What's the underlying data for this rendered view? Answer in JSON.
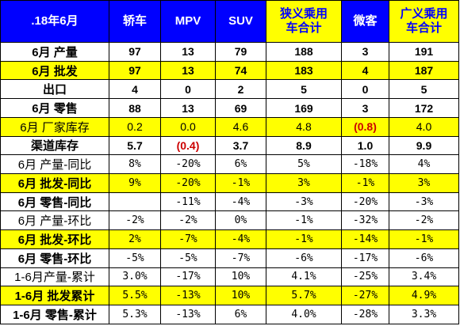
{
  "chart_data": {
    "type": "table",
    "columns": [
      ".18年6月",
      "轿车",
      "MPV",
      "SUV",
      "狭义乘用\n车合计",
      "微客",
      "广义乘用\n车合计"
    ],
    "header_highlight": [
      false,
      false,
      false,
      false,
      true,
      false,
      true
    ],
    "rows": [
      {
        "label": "6月 产量",
        "values": [
          "97",
          "13",
          "79",
          "188",
          "3",
          "191"
        ],
        "bold": true,
        "yellow": false,
        "mono": false,
        "neg": []
      },
      {
        "label": "6月 批发",
        "values": [
          "97",
          "13",
          "74",
          "183",
          "4",
          "187"
        ],
        "bold": true,
        "yellow": true,
        "mono": false,
        "neg": []
      },
      {
        "label": "出口",
        "values": [
          "4",
          "0",
          "2",
          "5",
          "0",
          "5"
        ],
        "bold": true,
        "yellow": false,
        "mono": false,
        "neg": []
      },
      {
        "label": "6月 零售",
        "values": [
          "88",
          "13",
          "69",
          "169",
          "3",
          "172"
        ],
        "bold": true,
        "yellow": false,
        "mono": false,
        "neg": []
      },
      {
        "label": "6月 厂家库存",
        "values": [
          "0.2",
          "0.0",
          "4.6",
          "4.8",
          "(0.8)",
          "4.0"
        ],
        "bold": false,
        "yellow": true,
        "mono": false,
        "neg": [
          4
        ]
      },
      {
        "label": "渠道库存",
        "values": [
          "5.7",
          "(0.4)",
          "3.7",
          "8.9",
          "1.0",
          "9.9"
        ],
        "bold": true,
        "yellow": false,
        "mono": false,
        "neg": [
          1
        ]
      },
      {
        "label": "6月 产量-同比",
        "values": [
          "8%",
          "-20%",
          "6%",
          "5%",
          "-18%",
          "4%"
        ],
        "bold": false,
        "yellow": false,
        "mono": true,
        "neg": []
      },
      {
        "label": "6月 批发-同比",
        "values": [
          "9%",
          "-20%",
          "-1%",
          "3%",
          "-1%",
          "3%"
        ],
        "bold": true,
        "yellow": true,
        "mono": true,
        "neg": []
      },
      {
        "label": "6月 零售-同比",
        "values": [
          "",
          "-11%",
          "-4%",
          "-3%",
          "-20%",
          "-3%"
        ],
        "bold": true,
        "yellow": false,
        "mono": true,
        "neg": []
      },
      {
        "label": "6月 产量-环比",
        "values": [
          "-2%",
          "-2%",
          "0%",
          "-1%",
          "-32%",
          "-2%"
        ],
        "bold": false,
        "yellow": false,
        "mono": true,
        "neg": []
      },
      {
        "label": "6月 批发-环比",
        "values": [
          "2%",
          "-7%",
          "-4%",
          "-1%",
          "-14%",
          "-1%"
        ],
        "bold": true,
        "yellow": true,
        "mono": true,
        "neg": []
      },
      {
        "label": "6月 零售-环比",
        "values": [
          "-5%",
          "-5%",
          "-7%",
          "-6%",
          "-17%",
          "-6%"
        ],
        "bold": true,
        "yellow": false,
        "mono": true,
        "neg": []
      },
      {
        "label": "1-6月产量-累计",
        "values": [
          "3.0%",
          "-17%",
          "10%",
          "4.1%",
          "-25%",
          "3.4%"
        ],
        "bold": false,
        "yellow": false,
        "mono": true,
        "neg": []
      },
      {
        "label": "1-6月 批发累计",
        "values": [
          "5.5%",
          "-13%",
          "10%",
          "5.7%",
          "-27%",
          "4.9%"
        ],
        "bold": true,
        "yellow": true,
        "mono": true,
        "neg": []
      },
      {
        "label": "1-6月 零售-累计",
        "values": [
          "5.3%",
          "-13%",
          "6%",
          "4.0%",
          "-28%",
          "3.3%"
        ],
        "bold": true,
        "yellow": false,
        "mono": true,
        "neg": []
      }
    ]
  },
  "colors": {
    "header_bg": "#0000ff",
    "header_text": "#ffffff",
    "highlight_bg": "#ffff00",
    "highlight_text": "#0000ff",
    "negative_text": "#cc0000"
  }
}
